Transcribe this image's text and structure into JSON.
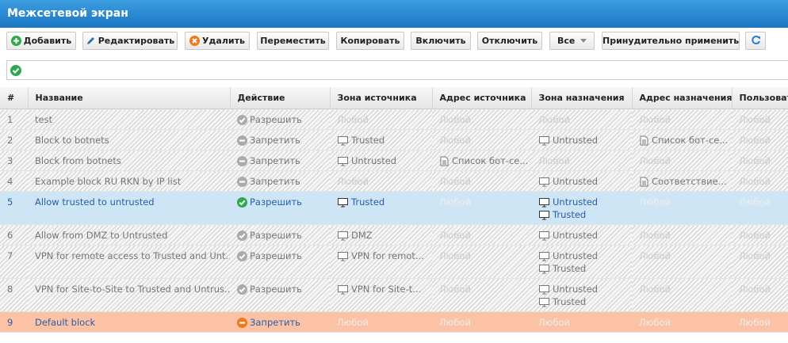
{
  "header": {
    "title": "Межсетевой экран"
  },
  "toolbar": {
    "buttons": [
      "Добавить",
      "Редактировать",
      "Удалить",
      "Переместить",
      "Копировать",
      "Включить",
      "Отключить",
      "Все",
      "Принудительно применить"
    ]
  },
  "table": {
    "columns": [
      "#",
      "Название",
      "Действие",
      "Зона источника",
      "Адрес источника",
      "Зона назначения",
      "Адрес назначения",
      "Пользоват"
    ],
    "rows": [
      {
        "state": "disabled",
        "number": 1,
        "name": "test",
        "action": {
          "text": "Разрешить",
          "icon": "allow"
        },
        "source_zone": {
          "items": [
            "Любой"
          ]
        },
        "source_address": {
          "items": [
            "Любой"
          ]
        },
        "destination_zone": {
          "items": [
            "Любой"
          ]
        },
        "destination_address": {
          "items": [
            "Любой"
          ]
        },
        "users": {
          "items": [
            "Любой"
          ]
        }
      },
      {
        "state": "disabled",
        "number": 2,
        "name": "Block to botnets",
        "action": {
          "text": "Запретить",
          "icon": "deny"
        },
        "source_zone": {
          "items": [
            "Trusted"
          ],
          "icon": "zone"
        },
        "source_address": {
          "items": [
            "Любой"
          ]
        },
        "destination_zone": {
          "items": [
            "Untrusted"
          ],
          "icon": "zone"
        },
        "destination_address": {
          "items": [
            "Список бот-се..."
          ],
          "icon": "list"
        },
        "users": {
          "items": [
            "Любой"
          ]
        }
      },
      {
        "state": "disabled",
        "number": 3,
        "name": "Block from botnets",
        "action": {
          "text": "Запретить",
          "icon": "deny"
        },
        "source_zone": {
          "items": [
            "Untrusted"
          ],
          "icon": "zone"
        },
        "source_address": {
          "items": [
            "Список бот-се..."
          ],
          "icon": "list"
        },
        "destination_zone": {
          "items": [
            "Любой"
          ]
        },
        "destination_address": {
          "items": [
            "Любой"
          ]
        },
        "users": {
          "items": [
            "Любой"
          ]
        }
      },
      {
        "state": "disabled",
        "number": 4,
        "name": "Example block RU RKN by IP list",
        "action": {
          "text": "Запретить",
          "icon": "deny"
        },
        "source_zone": {
          "items": [
            "Любой"
          ]
        },
        "source_address": {
          "items": [
            "Любой"
          ]
        },
        "destination_zone": {
          "items": [
            "Untrusted"
          ],
          "icon": "zone"
        },
        "destination_address": {
          "items": [
            "Соответствие..."
          ],
          "icon": "list"
        },
        "users": {
          "items": [
            "Любой"
          ]
        }
      },
      {
        "state": "selected",
        "number": 5,
        "name": "Allow trusted to untrusted",
        "action": {
          "text": "Разрешить",
          "icon": "allow"
        },
        "source_zone": {
          "items": [
            "Trusted"
          ],
          "icon": "zone"
        },
        "source_address": {
          "items": [
            "Любой"
          ]
        },
        "destination_zone": {
          "items": [
            "Untrusted",
            "Trusted"
          ],
          "icon": "zone"
        },
        "destination_address": {
          "items": [
            "Любой"
          ]
        },
        "users": {
          "items": [
            "Любой"
          ]
        }
      },
      {
        "state": "disabled",
        "number": 6,
        "name": "Allow from DMZ to Untrusted",
        "action": {
          "text": "Разрешить",
          "icon": "allow"
        },
        "source_zone": {
          "items": [
            "DMZ"
          ],
          "icon": "zone"
        },
        "source_address": {
          "items": [
            "Любой"
          ]
        },
        "destination_zone": {
          "items": [
            "Untrusted"
          ],
          "icon": "zone"
        },
        "destination_address": {
          "items": [
            "Любой"
          ]
        },
        "users": {
          "items": [
            "Любой"
          ]
        }
      },
      {
        "state": "disabled",
        "number": 7,
        "name": "VPN for remote access to Trusted and Unt...",
        "action": {
          "text": "Разрешить",
          "icon": "allow"
        },
        "source_zone": {
          "items": [
            "VPN for remot..."
          ],
          "icon": "zone"
        },
        "source_address": {
          "items": [
            "Любой"
          ]
        },
        "destination_zone": {
          "items": [
            "Untrusted",
            "Trusted"
          ],
          "icon": "zone"
        },
        "destination_address": {
          "items": [
            "Любой"
          ]
        },
        "users": {
          "items": [
            "Любой"
          ]
        }
      },
      {
        "state": "disabled",
        "number": 8,
        "name": "VPN for Site-to-Site to Trusted and Untrus...",
        "action": {
          "text": "Разрешить",
          "icon": "allow"
        },
        "source_zone": {
          "items": [
            "VPN for Site-t..."
          ],
          "icon": "zone"
        },
        "source_address": {
          "items": [
            "Любой"
          ]
        },
        "destination_zone": {
          "items": [
            "Untrusted",
            "Trusted"
          ],
          "icon": "zone"
        },
        "destination_address": {
          "items": [
            "Любой"
          ]
        },
        "users": {
          "items": [
            "Любой"
          ]
        }
      },
      {
        "state": "default",
        "number": 9,
        "name": "Default block",
        "action": {
          "text": "Запретить",
          "icon": "deny"
        },
        "source_zone": {
          "items": [
            "Любой"
          ]
        },
        "source_address": {
          "items": [
            "Любой"
          ]
        },
        "destination_zone": {
          "items": [
            "Любой"
          ]
        },
        "destination_address": {
          "items": [
            "Любой"
          ]
        },
        "users": {
          "items": [
            "Любой"
          ]
        }
      }
    ]
  }
}
